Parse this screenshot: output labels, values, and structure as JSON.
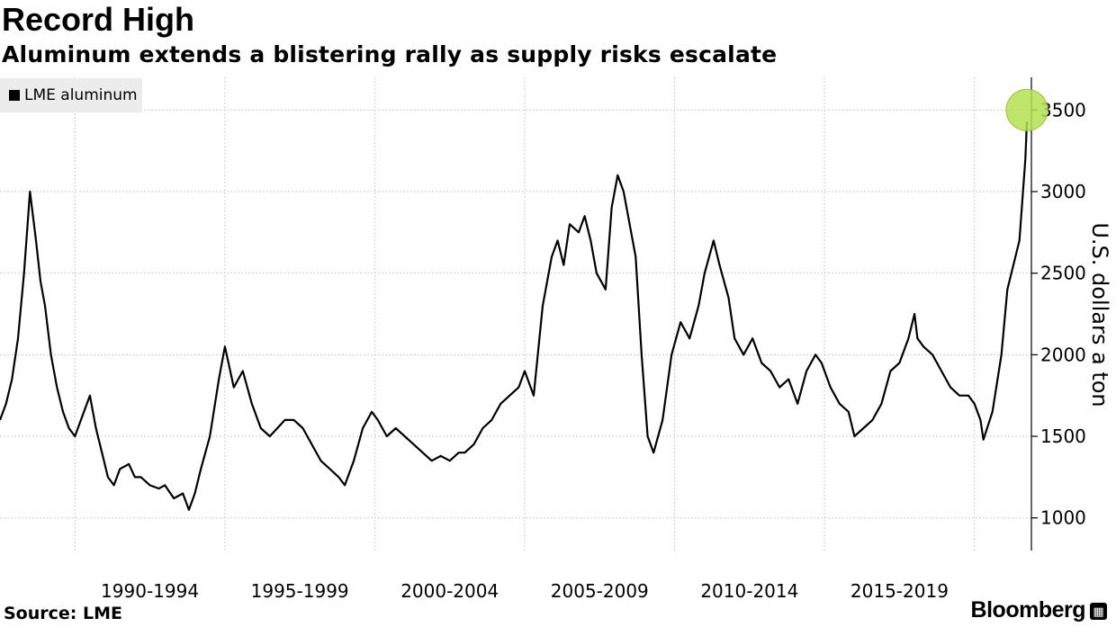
{
  "chart_data": {
    "type": "line",
    "title": "Record High",
    "subtitle": "Aluminum extends a blistering rally as supply risks escalate",
    "ylabel": "U.S. dollars a ton",
    "xlabel": "",
    "legend": {
      "placement": "top-left",
      "entries": [
        "LME aluminum"
      ]
    },
    "source": "Source: LME",
    "brand": "Bloomberg",
    "grid": true,
    "y_axis_side": "right",
    "ylim": [
      800,
      3700
    ],
    "y_ticks": [
      1000,
      1500,
      2000,
      2500,
      3000,
      3500
    ],
    "xlim": [
      1987.5,
      2021.9
    ],
    "x_tick_labels": [
      "1990-1994",
      "1995-1999",
      "2000-2004",
      "2005-2009",
      "2010-2014",
      "2015-2019"
    ],
    "x_tick_label_centers": [
      1992.5,
      1997.5,
      2002.5,
      2007.5,
      2012.5,
      2017.5
    ],
    "x_grid_years": [
      1990,
      1995,
      2000,
      2005,
      2010,
      2015,
      2020
    ],
    "series": [
      {
        "name": "LME aluminum",
        "color": "#000000",
        "x": [
          1987.5,
          1987.7,
          1987.9,
          1988.1,
          1988.3,
          1988.5,
          1988.7,
          1988.85,
          1989.0,
          1989.2,
          1989.4,
          1989.6,
          1989.8,
          1990.0,
          1990.2,
          1990.5,
          1990.7,
          1990.9,
          1991.1,
          1991.3,
          1991.5,
          1991.8,
          1992.0,
          1992.2,
          1992.5,
          1992.8,
          1993.0,
          1993.3,
          1993.6,
          1993.8,
          1994.0,
          1994.2,
          1994.5,
          1994.8,
          1995.0,
          1995.3,
          1995.6,
          1995.9,
          1996.2,
          1996.5,
          1996.8,
          1997.0,
          1997.3,
          1997.6,
          1997.9,
          1998.2,
          1998.5,
          1998.8,
          1999.0,
          1999.3,
          1999.6,
          1999.9,
          2000.1,
          2000.4,
          2000.7,
          2001.0,
          2001.3,
          2001.6,
          2001.9,
          2002.2,
          2002.5,
          2002.8,
          2003.0,
          2003.3,
          2003.6,
          2003.9,
          2004.2,
          2004.5,
          2004.8,
          2005.0,
          2005.3,
          2005.6,
          2005.9,
          2006.1,
          2006.3,
          2006.5,
          2006.8,
          2007.0,
          2007.2,
          2007.4,
          2007.7,
          2007.9,
          2008.1,
          2008.3,
          2008.5,
          2008.7,
          2008.9,
          2009.1,
          2009.3,
          2009.6,
          2009.9,
          2010.2,
          2010.5,
          2010.8,
          2011.0,
          2011.3,
          2011.5,
          2011.8,
          2012.0,
          2012.3,
          2012.6,
          2012.9,
          2013.2,
          2013.5,
          2013.8,
          2014.1,
          2014.4,
          2014.7,
          2014.9,
          2015.2,
          2015.5,
          2015.8,
          2016.0,
          2016.3,
          2016.6,
          2016.9,
          2017.2,
          2017.5,
          2017.8,
          2018.0,
          2018.1,
          2018.3,
          2018.6,
          2018.9,
          2019.2,
          2019.5,
          2019.8,
          2020.0,
          2020.2,
          2020.3,
          2020.6,
          2020.9,
          2021.1,
          2021.3,
          2021.5,
          2021.7,
          2021.75
        ],
        "y": [
          1600,
          1700,
          1850,
          2100,
          2500,
          3000,
          2700,
          2450,
          2300,
          2000,
          1800,
          1650,
          1550,
          1500,
          1600,
          1750,
          1550,
          1400,
          1250,
          1200,
          1300,
          1330,
          1250,
          1250,
          1200,
          1180,
          1200,
          1120,
          1150,
          1050,
          1150,
          1300,
          1500,
          1850,
          2050,
          1800,
          1900,
          1700,
          1550,
          1500,
          1560,
          1600,
          1600,
          1550,
          1450,
          1350,
          1300,
          1250,
          1200,
          1350,
          1550,
          1650,
          1600,
          1500,
          1550,
          1500,
          1450,
          1400,
          1350,
          1380,
          1350,
          1400,
          1400,
          1450,
          1550,
          1600,
          1700,
          1750,
          1800,
          1900,
          1750,
          2300,
          2600,
          2700,
          2550,
          2800,
          2750,
          2850,
          2700,
          2500,
          2400,
          2900,
          3100,
          3000,
          2800,
          2600,
          2000,
          1500,
          1400,
          1600,
          2000,
          2200,
          2100,
          2300,
          2500,
          2700,
          2550,
          2350,
          2100,
          2000,
          2100,
          1950,
          1900,
          1800,
          1850,
          1700,
          1900,
          2000,
          1950,
          1800,
          1700,
          1650,
          1500,
          1550,
          1600,
          1700,
          1900,
          1950,
          2100,
          2250,
          2100,
          2050,
          2000,
          1900,
          1800,
          1750,
          1750,
          1700,
          1600,
          1480,
          1650,
          2000,
          2400,
          2550,
          2700,
          3200,
          3430
        ]
      }
    ],
    "annotations": [
      {
        "type": "highlight-circle",
        "x": 2021.75,
        "y": 3500,
        "color": "#b4e150"
      }
    ]
  }
}
